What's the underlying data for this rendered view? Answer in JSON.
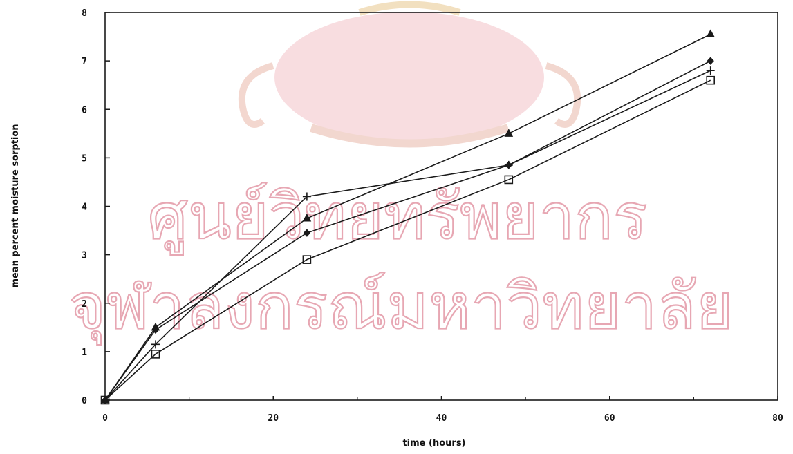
{
  "chart_data": {
    "type": "line",
    "xlabel": "time (hours)",
    "ylabel": "mean percent moisture sorption",
    "xlim": [
      0,
      80
    ],
    "ylim": [
      0,
      8
    ],
    "xticks": [
      0,
      20,
      40,
      60,
      80
    ],
    "yticks": [
      0,
      1,
      2,
      3,
      4,
      5,
      6,
      7,
      8
    ],
    "x": [
      0,
      6,
      24,
      48,
      72
    ],
    "series": [
      {
        "marker": "triangle",
        "values": [
          0,
          1.5,
          3.75,
          5.5,
          7.55
        ]
      },
      {
        "marker": "diamond",
        "values": [
          0,
          1.45,
          3.45,
          4.85,
          7.0
        ]
      },
      {
        "marker": "plus",
        "values": [
          0,
          1.15,
          4.2,
          4.85,
          6.8
        ]
      },
      {
        "marker": "square",
        "values": [
          0,
          0.95,
          2.9,
          4.55,
          6.6
        ]
      }
    ],
    "grid": false,
    "legend": "none"
  },
  "watermark": {
    "line1": "ศูนย์วิทยทรัพยากร",
    "line2": "จุฬาลงกรณ์มหาวิทยาลัย",
    "color": "#e7a7b3",
    "emblem_color": "#f3c2c8"
  }
}
